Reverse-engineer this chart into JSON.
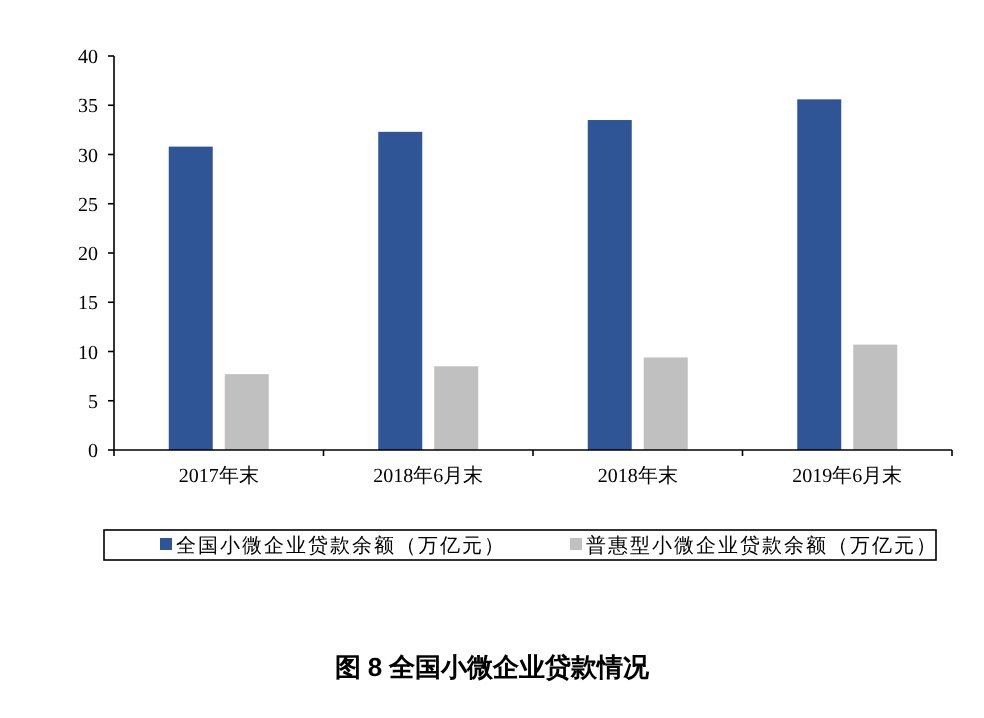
{
  "chart_data": {
    "type": "bar",
    "title": "图 8 全国小微企业贷款情况",
    "categories": [
      "2017年末",
      "2018年6月末",
      "2018年末",
      "2019年6月末"
    ],
    "series": [
      {
        "name": "全国小微企业贷款余额（万亿元）",
        "color": "#2f5597",
        "values": [
          30.8,
          32.3,
          33.5,
          35.6
        ]
      },
      {
        "name": "普惠型小微企业贷款余额（万亿元）",
        "color": "#c0c0c0",
        "values": [
          7.7,
          8.5,
          9.4,
          10.7
        ]
      }
    ],
    "ylim": [
      0,
      40
    ],
    "yticks": [
      0,
      5,
      10,
      15,
      20,
      25,
      30,
      35,
      40
    ],
    "legend": "bottom",
    "grid": false
  }
}
